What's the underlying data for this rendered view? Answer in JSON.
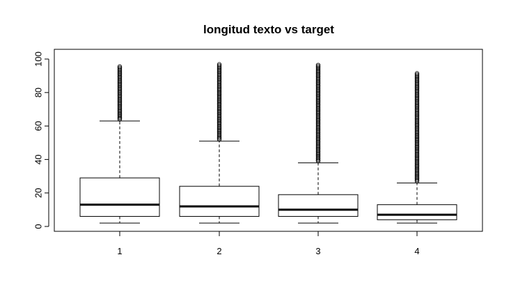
{
  "chart_data": {
    "type": "boxplot",
    "title": "longitud texto vs target",
    "xlabel": "",
    "ylabel": "",
    "ylim": [
      -2,
      102
    ],
    "yticks": [
      0,
      20,
      40,
      60,
      80,
      100
    ],
    "categories": [
      "1",
      "2",
      "3",
      "4"
    ],
    "boxes": [
      {
        "category": "1",
        "whisker_low": 2,
        "q1": 6,
        "median": 13,
        "q3": 29,
        "whisker_high": 63,
        "outlier_range": [
          64,
          96
        ]
      },
      {
        "category": "2",
        "whisker_low": 2,
        "q1": 6,
        "median": 12,
        "q3": 24,
        "whisker_high": 51,
        "outlier_range": [
          52,
          97
        ]
      },
      {
        "category": "3",
        "whisker_low": 2,
        "q1": 6,
        "median": 10,
        "q3": 19,
        "whisker_high": 38,
        "outlier_range": [
          39,
          97
        ]
      },
      {
        "category": "4",
        "whisker_low": 2,
        "q1": 4,
        "median": 7,
        "q3": 13,
        "whisker_high": 26,
        "outlier_range": [
          27,
          92
        ]
      }
    ],
    "grid": false,
    "legend": "none"
  }
}
